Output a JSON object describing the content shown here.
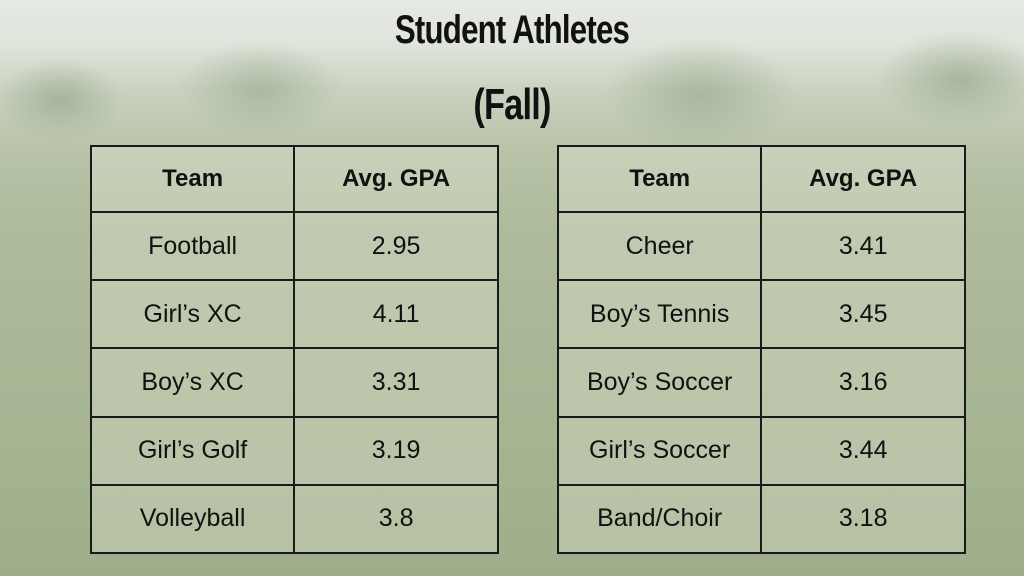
{
  "title_line1": "Student Athletes",
  "title_line2": "(Fall)",
  "colors": {
    "team_header": "#1e9a2c",
    "gpa_header": "#f39a1c"
  },
  "left_table": {
    "headers": {
      "team": "Team",
      "gpa": "Avg. GPA"
    },
    "rows": [
      {
        "team": "Football",
        "gpa": "2.95"
      },
      {
        "team": "Girl’s XC",
        "gpa": "4.11"
      },
      {
        "team": "Boy’s XC",
        "gpa": "3.31"
      },
      {
        "team": "Girl’s Golf",
        "gpa": "3.19"
      },
      {
        "team": "Volleyball",
        "gpa": "3.8"
      }
    ]
  },
  "right_table": {
    "headers": {
      "team": "Team",
      "gpa": "Avg. GPA"
    },
    "rows": [
      {
        "team": "Cheer",
        "gpa": "3.41"
      },
      {
        "team": "Boy’s Tennis",
        "gpa": "3.45"
      },
      {
        "team": "Boy’s Soccer",
        "gpa": "3.16"
      },
      {
        "team": "Girl’s Soccer",
        "gpa": "3.44"
      },
      {
        "team": "Band/Choir",
        "gpa": "3.18"
      }
    ]
  }
}
